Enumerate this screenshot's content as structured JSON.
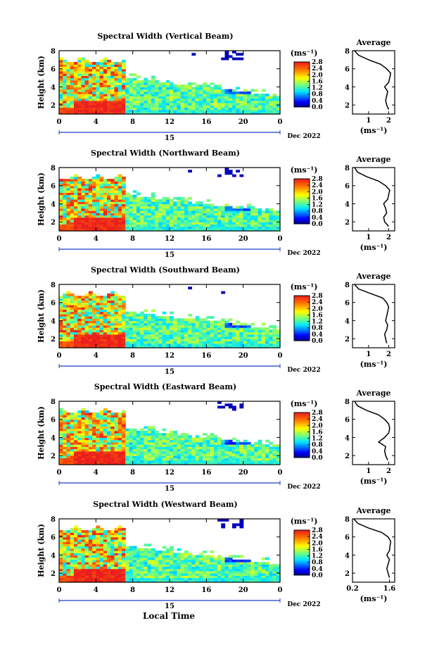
{
  "figure": {
    "shared_xlabel": "Local Time",
    "date_label": "Dec 2022",
    "day_label": "15",
    "colorbar_unit": "(ms⁻¹)",
    "colorbar_ticks": [
      "0.0",
      "0.4",
      "0.8",
      "1.2",
      "1.6",
      "2.0",
      "2.4",
      "2.8"
    ],
    "profile_title": "Average",
    "profile_unit": "(ms⁻¹)"
  },
  "chart_data": [
    {
      "type": "heatmap",
      "title": "Spectral Width (Vertical Beam)",
      "ylabel": "Height (km)",
      "xlim": [
        0,
        24
      ],
      "ylim": [
        1,
        8
      ],
      "x_ticks": [
        "0",
        "4",
        "8",
        "12",
        "16",
        "20",
        "0"
      ],
      "y_ticks": [
        "2",
        "4",
        "6",
        "8"
      ],
      "color_range": [
        0,
        2.8
      ],
      "profile": {
        "xlim": [
          0.2,
          2.3
        ],
        "x_ticks": [
          "1",
          "2"
        ],
        "ylim": [
          1,
          8
        ],
        "y_ticks": [
          "2",
          "4",
          "6",
          "8"
        ],
        "height_km": [
          1.5,
          2.0,
          2.5,
          3.0,
          3.5,
          4.0,
          4.5,
          5.0,
          5.5,
          6.0,
          6.5,
          7.0,
          7.5,
          8.0
        ],
        "width_ms": [
          2.0,
          1.9,
          1.85,
          1.9,
          1.95,
          1.8,
          2.0,
          2.05,
          2.1,
          1.9,
          1.6,
          1.0,
          0.5,
          0.3
        ]
      }
    },
    {
      "type": "heatmap",
      "title": "Spectral Width (Northward Beam)",
      "ylabel": "Height (km)",
      "xlim": [
        0,
        24
      ],
      "ylim": [
        1,
        8
      ],
      "x_ticks": [
        "0",
        "4",
        "8",
        "12",
        "16",
        "20",
        "0"
      ],
      "y_ticks": [
        "2",
        "4",
        "6",
        "8"
      ],
      "color_range": [
        0,
        2.8
      ],
      "profile": {
        "xlim": [
          0.2,
          2.3
        ],
        "x_ticks": [
          "1",
          "2"
        ],
        "ylim": [
          1,
          8
        ],
        "y_ticks": [
          "2",
          "4",
          "6",
          "8"
        ],
        "height_km": [
          1.5,
          2.0,
          2.5,
          3.0,
          3.5,
          4.0,
          4.5,
          5.0,
          5.5,
          6.0,
          6.5,
          7.0,
          7.5,
          8.0
        ],
        "width_ms": [
          2.0,
          1.8,
          1.75,
          1.9,
          1.85,
          1.75,
          1.95,
          2.0,
          2.05,
          1.85,
          1.5,
          0.9,
          0.45,
          0.3
        ]
      }
    },
    {
      "type": "heatmap",
      "title": "Spectral Width (Southward Beam)",
      "ylabel": "Height (km)",
      "xlim": [
        0,
        24
      ],
      "ylim": [
        1,
        8
      ],
      "x_ticks": [
        "0",
        "4",
        "8",
        "12",
        "16",
        "20",
        "0"
      ],
      "y_ticks": [
        "2",
        "4",
        "6",
        "8"
      ],
      "color_range": [
        0,
        2.8
      ],
      "profile": {
        "xlim": [
          0.2,
          2.3
        ],
        "x_ticks": [
          "1",
          "2"
        ],
        "ylim": [
          1,
          8
        ],
        "y_ticks": [
          "2",
          "4",
          "6",
          "8"
        ],
        "height_km": [
          1.5,
          2.0,
          2.5,
          3.0,
          3.5,
          4.0,
          4.5,
          5.0,
          5.5,
          6.0,
          6.5,
          7.0,
          7.5,
          8.0
        ],
        "width_ms": [
          1.9,
          1.85,
          1.8,
          1.9,
          1.95,
          1.85,
          1.9,
          1.95,
          2.0,
          1.9,
          1.7,
          1.1,
          0.5,
          0.3
        ]
      }
    },
    {
      "type": "heatmap",
      "title": "Spectral Width (Eastward Beam)",
      "ylabel": "Height (km)",
      "xlim": [
        0,
        24
      ],
      "ylim": [
        1,
        8
      ],
      "x_ticks": [
        "0",
        "4",
        "8",
        "12",
        "16",
        "20",
        "0"
      ],
      "y_ticks": [
        "2",
        "4",
        "6",
        "8"
      ],
      "color_range": [
        0,
        2.8
      ],
      "profile": {
        "xlim": [
          0.2,
          2.3
        ],
        "x_ticks": [
          "1",
          "2"
        ],
        "ylim": [
          1,
          8
        ],
        "y_ticks": [
          "2",
          "4",
          "6",
          "8"
        ],
        "height_km": [
          1.5,
          2.0,
          2.5,
          3.0,
          3.5,
          4.0,
          4.5,
          5.0,
          5.5,
          6.0,
          6.5,
          7.0,
          7.5,
          8.0
        ],
        "width_ms": [
          1.95,
          1.85,
          1.8,
          1.85,
          1.5,
          1.8,
          2.0,
          2.05,
          2.0,
          1.8,
          1.5,
          0.9,
          0.45,
          0.3
        ]
      }
    },
    {
      "type": "heatmap",
      "title": "Spectral Width (Westward Beam)",
      "ylabel": "Height (km)",
      "xlim": [
        0,
        24
      ],
      "ylim": [
        1,
        8
      ],
      "x_ticks": [
        "0",
        "4",
        "8",
        "12",
        "16",
        "20",
        "0"
      ],
      "y_ticks": [
        "2",
        "4",
        "6",
        "8"
      ],
      "color_range": [
        0,
        2.8
      ],
      "profile": {
        "xlim": [
          0.2,
          1.8
        ],
        "x_ticks": [
          "0.2",
          "1.6"
        ],
        "ylim": [
          1,
          8
        ],
        "y_ticks": [
          "2",
          "4",
          "6",
          "8"
        ],
        "height_km": [
          1.5,
          2.0,
          2.5,
          3.0,
          3.5,
          4.0,
          4.5,
          5.0,
          5.5,
          6.0,
          6.5,
          7.0,
          7.5,
          8.0
        ],
        "width_ms": [
          1.6,
          1.55,
          1.5,
          1.55,
          1.6,
          1.5,
          1.6,
          1.62,
          1.65,
          1.55,
          1.3,
          0.8,
          0.4,
          0.25
        ]
      }
    }
  ]
}
